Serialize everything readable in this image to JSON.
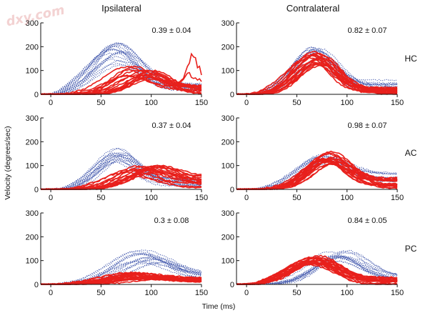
{
  "watermark": "dxy.com",
  "chart_data": {
    "type": "line",
    "title": "",
    "xlabel": "Time (ms)",
    "ylabel": "Velocity (degrees/sec)",
    "xlim": [
      -10,
      150
    ],
    "ylim": [
      0,
      300
    ],
    "xticks": [
      0,
      50,
      100,
      150
    ],
    "yticks": [
      0,
      100,
      200,
      300
    ],
    "columns": [
      "Ipsilateral",
      "Contralateral"
    ],
    "rows": [
      "HC",
      "AC",
      "PC"
    ],
    "grid": false,
    "colors": {
      "blue_traces": "#4a5fb0",
      "red_traces": "#e8201c",
      "axes": "#111111"
    },
    "panels": [
      {
        "row": "HC",
        "column": "Ipsilateral",
        "annotation": "0.39 ± 0.04",
        "blue_series": {
          "style": "dotted",
          "count": 18,
          "peak_range": [
            120,
            220
          ],
          "peak_time_range": [
            60,
            72
          ],
          "width": 34,
          "tail_ms": 150,
          "floor_range": [
            10,
            45
          ]
        },
        "red_series": {
          "style": "solid",
          "count": 16,
          "peak_range": [
            60,
            120
          ],
          "peak_time_range": [
            75,
            105
          ],
          "width": 30,
          "tail_ms": 150,
          "floor_range": [
            0,
            40
          ]
        },
        "red_extra_bumps": [
          {
            "t": 142,
            "v": 145,
            "w": 9
          },
          {
            "t": 140,
            "v": 70,
            "w": 12
          }
        ]
      },
      {
        "row": "HC",
        "column": "Contralateral",
        "annotation": "0.82 ± 0.07",
        "blue_series": {
          "style": "dotted",
          "count": 16,
          "peak_range": [
            150,
            215
          ],
          "peak_time_range": [
            62,
            75
          ],
          "width": 30,
          "tail_ms": 150,
          "floor_range": [
            10,
            60
          ]
        },
        "red_series": {
          "style": "solid",
          "count": 18,
          "peak_range": [
            110,
            180
          ],
          "peak_time_range": [
            62,
            78
          ],
          "width": 30,
          "tail_ms": 150,
          "floor_range": [
            0,
            30
          ]
        }
      },
      {
        "row": "AC",
        "column": "Ipsilateral",
        "annotation": "0.37 ± 0.04",
        "blue_series": {
          "style": "dotted",
          "count": 16,
          "peak_range": [
            110,
            175
          ],
          "peak_time_range": [
            62,
            75
          ],
          "width": 30,
          "tail_ms": 150,
          "floor_range": [
            10,
            45
          ]
        },
        "red_series": {
          "style": "solid",
          "count": 16,
          "peak_range": [
            55,
            100
          ],
          "peak_time_range": [
            75,
            110
          ],
          "width": 32,
          "tail_ms": 150,
          "floor_range": [
            0,
            60
          ]
        }
      },
      {
        "row": "AC",
        "column": "Contralateral",
        "annotation": "0.98 ± 0.07",
        "blue_series": {
          "style": "dotted",
          "count": 14,
          "peak_range": [
            105,
            150
          ],
          "peak_time_range": [
            70,
            85
          ],
          "width": 34,
          "tail_ms": 150,
          "floor_range": [
            20,
            75
          ]
        },
        "red_series": {
          "style": "solid",
          "count": 18,
          "peak_range": [
            95,
            160
          ],
          "peak_time_range": [
            75,
            92
          ],
          "width": 30,
          "tail_ms": 150,
          "floor_range": [
            0,
            50
          ]
        }
      },
      {
        "row": "PC",
        "column": "Ipsilateral",
        "annotation": "0.3 ± 0.08",
        "blue_series": {
          "style": "dotted",
          "count": 16,
          "peak_range": [
            85,
            145
          ],
          "peak_time_range": [
            85,
            110
          ],
          "width": 40,
          "tail_ms": 150,
          "floor_range": [
            20,
            50
          ]
        },
        "red_series": {
          "style": "solid",
          "count": 20,
          "peak_range": [
            20,
            50
          ],
          "peak_time_range": [
            70,
            115
          ],
          "width": 40,
          "tail_ms": 150,
          "floor_range": [
            10,
            30
          ]
        }
      },
      {
        "row": "PC",
        "column": "Contralateral",
        "annotation": "0.84 ± 0.05",
        "blue_series": {
          "style": "dotted",
          "count": 14,
          "peak_range": [
            95,
            145
          ],
          "peak_time_range": [
            80,
            100
          ],
          "width": 36,
          "tail_ms": 150,
          "floor_range": [
            10,
            40
          ]
        },
        "red_series": {
          "style": "solid",
          "count": 18,
          "peak_range": [
            80,
            120
          ],
          "peak_time_range": [
            60,
            75
          ],
          "width": 34,
          "tail_ms": 150,
          "floor_range": [
            0,
            30
          ]
        }
      }
    ]
  }
}
